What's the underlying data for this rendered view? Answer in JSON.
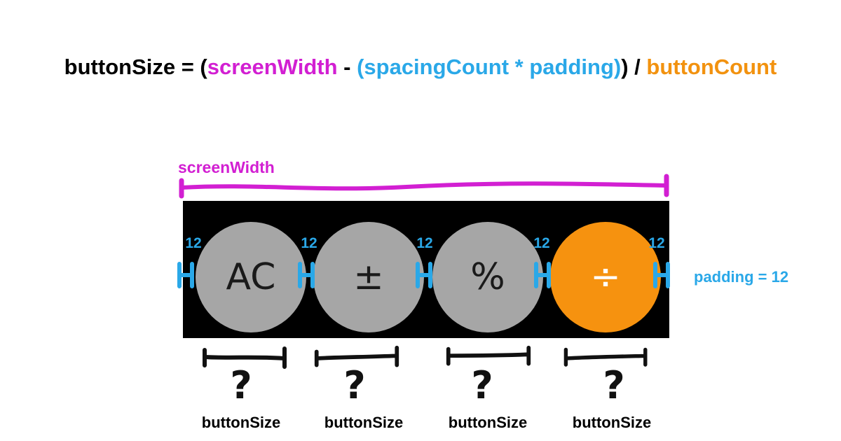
{
  "formula": {
    "lhs": "buttonSize = (",
    "screen_width": "screenWidth",
    "minus": " - ",
    "spacing_term": "(spacingCount * padding)",
    "close_div": ") / ",
    "button_count": "buttonCount"
  },
  "screen_width_label": "screenWidth",
  "buttons": [
    {
      "label": "AC",
      "kind": "function"
    },
    {
      "label": "±",
      "kind": "function"
    },
    {
      "label": "%",
      "kind": "function"
    },
    {
      "label": "÷",
      "kind": "operator"
    }
  ],
  "padding_values": [
    "12",
    "12",
    "12",
    "12",
    "12"
  ],
  "padding_label": "padding = 12",
  "size_markers": [
    {
      "mark": "?",
      "label": "buttonSize"
    },
    {
      "mark": "?",
      "label": "buttonSize"
    },
    {
      "mark": "?",
      "label": "buttonSize"
    },
    {
      "mark": "?",
      "label": "buttonSize"
    }
  ],
  "colors": {
    "screen_width": "#d21fd2",
    "padding": "#2aa8e8",
    "button_count": "#f2920f",
    "function_button": "#a6a6a6",
    "operator_button": "#f6920f",
    "background_row": "#000000"
  }
}
